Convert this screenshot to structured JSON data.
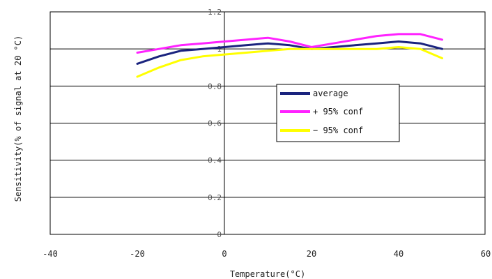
{
  "chart_data": {
    "type": "line",
    "title": "",
    "xlabel": "Temperature(°C)",
    "ylabel": "Sensitivity(% of signal at 20 °C)",
    "xlim": [
      -40,
      60
    ],
    "ylim": [
      0,
      1.2
    ],
    "x_ticks": [
      "-40",
      "-20",
      "0",
      "20",
      "40",
      "60"
    ],
    "y_ticks": [
      "0",
      "0.2",
      "0.4",
      "0.6",
      "0.8",
      "1",
      "1.2"
    ],
    "grid": "horizontal",
    "legend_position": "center-right",
    "series": [
      {
        "name": "average",
        "color": "#1a237e",
        "x": [
          -20,
          -15,
          -10,
          -5,
          0,
          5,
          10,
          15,
          20,
          25,
          30,
          35,
          40,
          45,
          50
        ],
        "y": [
          0.92,
          0.96,
          0.99,
          1.0,
          1.01,
          1.02,
          1.03,
          1.02,
          1.0,
          1.01,
          1.02,
          1.03,
          1.04,
          1.03,
          1.0
        ]
      },
      {
        "name": "+ 95% conf",
        "color": "#ff22ff",
        "x": [
          -20,
          -15,
          -10,
          -5,
          0,
          5,
          10,
          15,
          20,
          25,
          30,
          35,
          40,
          45,
          50
        ],
        "y": [
          0.98,
          1.0,
          1.02,
          1.03,
          1.04,
          1.05,
          1.06,
          1.04,
          1.01,
          1.03,
          1.05,
          1.07,
          1.08,
          1.08,
          1.05
        ]
      },
      {
        "name": "− 95% conf",
        "color": "#ffff00",
        "x": [
          -20,
          -15,
          -10,
          -5,
          0,
          5,
          10,
          15,
          20,
          25,
          30,
          35,
          40,
          45,
          50
        ],
        "y": [
          0.85,
          0.9,
          0.94,
          0.96,
          0.97,
          0.98,
          0.99,
          1.0,
          1.0,
          1.0,
          1.0,
          1.0,
          1.01,
          1.0,
          0.95
        ]
      }
    ]
  }
}
